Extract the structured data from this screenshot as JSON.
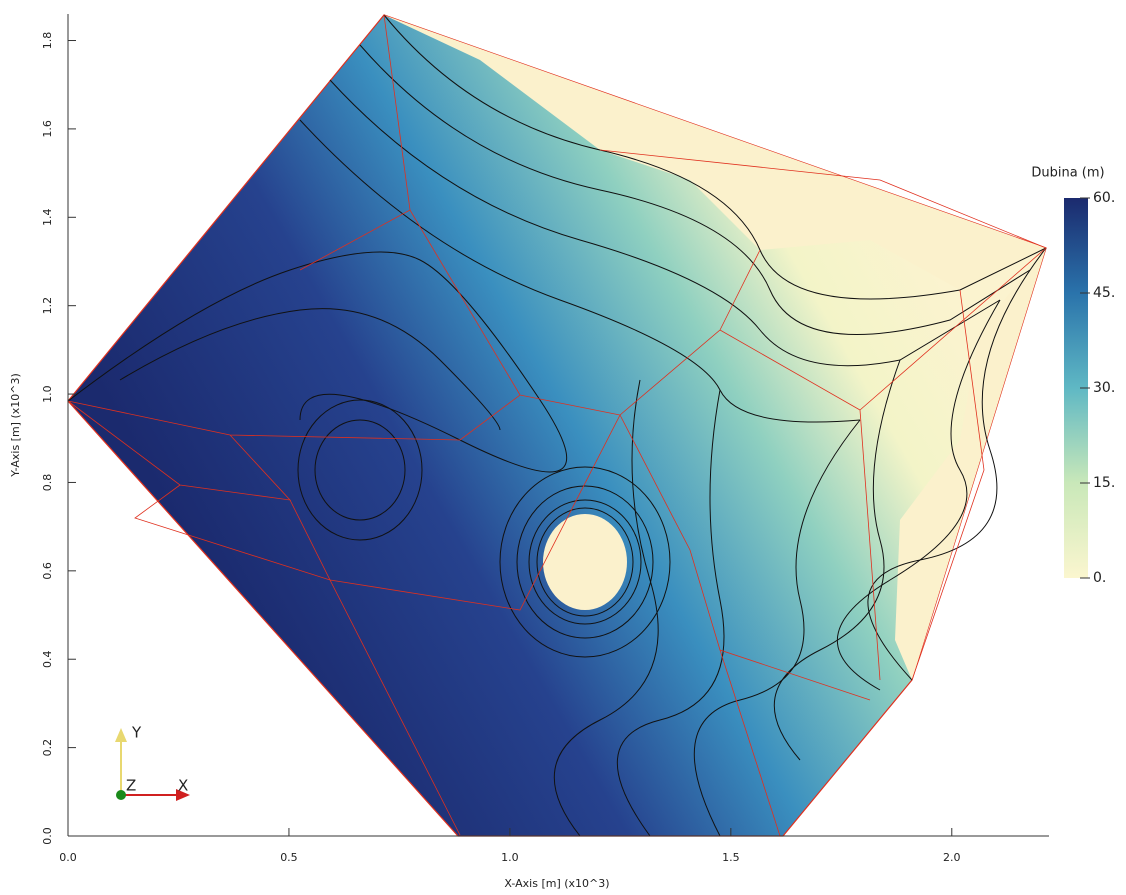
{
  "chart_data": {
    "type": "contour",
    "x_label": "X-Axis [m] (x10^3)",
    "y_label": "Y-Axis [m] (x10^3)",
    "xlim": [
      0,
      2.22
    ],
    "ylim": [
      0,
      1.86
    ],
    "xticks": [
      {
        "value": 0,
        "label": "0.0"
      },
      0.5,
      {
        "value": 1,
        "label": "1.0"
      },
      1.5,
      {
        "value": 2,
        "label": "2.0"
      }
    ],
    "yticks": [
      {
        "value": 0,
        "label": "0.0"
      },
      0.2,
      0.4,
      0.6,
      0.8,
      {
        "value": 1,
        "label": "1.0"
      },
      1.2,
      1.4,
      1.6,
      1.8
    ],
    "colorbar": {
      "title": "Dubina (m)",
      "clim": [
        0,
        60
      ],
      "ticks": [
        {
          "value": 0,
          "label": "0."
        },
        {
          "value": 15,
          "label": "15."
        },
        {
          "value": 30,
          "label": "30."
        },
        {
          "value": 45,
          "label": "45."
        },
        {
          "value": 60,
          "label": "60."
        }
      ],
      "colors": [
        "#fbf6cf",
        "#c9e8b9",
        "#5fb8c4",
        "#2a73ab",
        "#1b2a6e"
      ]
    },
    "axes_triad": {
      "x": "X",
      "y": "Y",
      "z": "Z"
    }
  }
}
